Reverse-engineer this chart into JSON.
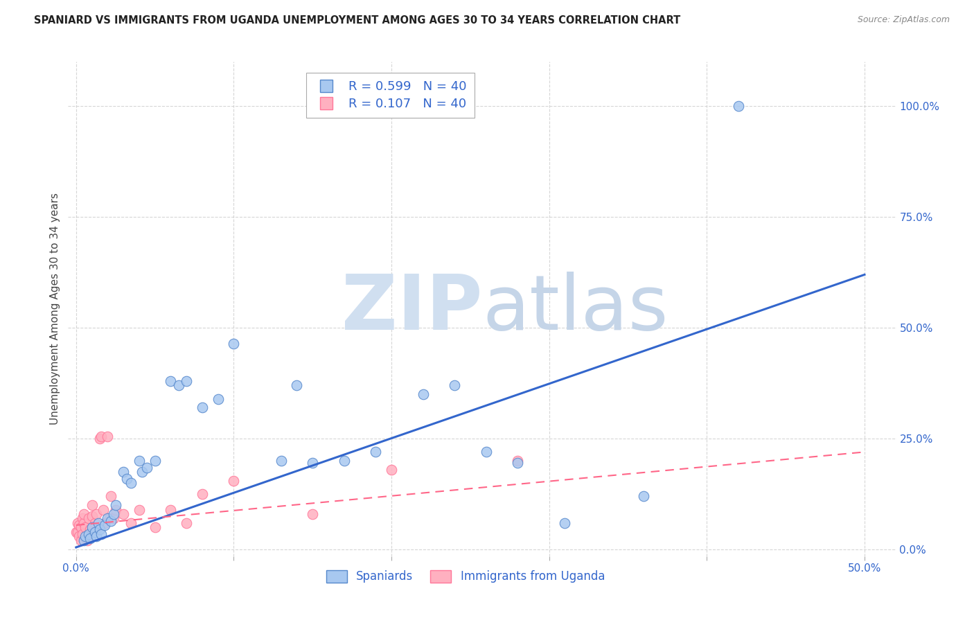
{
  "title": "SPANIARD VS IMMIGRANTS FROM UGANDA UNEMPLOYMENT AMONG AGES 30 TO 34 YEARS CORRELATION CHART",
  "source": "Source: ZipAtlas.com",
  "ylabel": "Unemployment Among Ages 30 to 34 years",
  "legend_blue_r": "R = 0.599",
  "legend_blue_n": "N = 40",
  "legend_pink_r": "R = 0.107",
  "legend_pink_n": "N = 40",
  "legend_label_blue": "Spaniards",
  "legend_label_pink": "Immigrants from Uganda",
  "blue_scatter_color": "#A8C8F0",
  "blue_edge_color": "#5588CC",
  "pink_scatter_color": "#FFB0C0",
  "pink_edge_color": "#FF7799",
  "blue_line_color": "#3366CC",
  "pink_line_color": "#FF6688",
  "watermark_zip_color": "#C8D8E8",
  "watermark_atlas_color": "#C8D8E8",
  "spaniards_x": [
    0.005,
    0.006,
    0.008,
    0.009,
    0.01,
    0.012,
    0.013,
    0.014,
    0.015,
    0.016,
    0.018,
    0.02,
    0.022,
    0.024,
    0.025,
    0.03,
    0.032,
    0.035,
    0.04,
    0.042,
    0.045,
    0.05,
    0.06,
    0.065,
    0.07,
    0.08,
    0.09,
    0.1,
    0.13,
    0.14,
    0.15,
    0.17,
    0.19,
    0.22,
    0.24,
    0.26,
    0.28,
    0.31,
    0.36,
    0.42
  ],
  "spaniards_y": [
    0.02,
    0.03,
    0.035,
    0.025,
    0.05,
    0.04,
    0.03,
    0.06,
    0.045,
    0.035,
    0.055,
    0.07,
    0.065,
    0.08,
    0.1,
    0.175,
    0.16,
    0.15,
    0.2,
    0.175,
    0.185,
    0.2,
    0.38,
    0.37,
    0.38,
    0.32,
    0.34,
    0.465,
    0.2,
    0.37,
    0.195,
    0.2,
    0.22,
    0.35,
    0.37,
    0.22,
    0.195,
    0.06,
    0.12,
    1.0
  ],
  "uganda_x": [
    0.0,
    0.001,
    0.001,
    0.002,
    0.002,
    0.003,
    0.003,
    0.004,
    0.004,
    0.005,
    0.005,
    0.006,
    0.007,
    0.008,
    0.009,
    0.01,
    0.01,
    0.012,
    0.013,
    0.014,
    0.015,
    0.016,
    0.017,
    0.018,
    0.02,
    0.021,
    0.022,
    0.024,
    0.025,
    0.03,
    0.035,
    0.04,
    0.05,
    0.06,
    0.07,
    0.08,
    0.1,
    0.15,
    0.2,
    0.28
  ],
  "uganda_y": [
    0.04,
    0.04,
    0.06,
    0.03,
    0.055,
    0.02,
    0.05,
    0.035,
    0.07,
    0.06,
    0.08,
    0.05,
    0.02,
    0.07,
    0.045,
    0.075,
    0.1,
    0.06,
    0.08,
    0.05,
    0.25,
    0.255,
    0.09,
    0.06,
    0.255,
    0.07,
    0.12,
    0.07,
    0.09,
    0.08,
    0.06,
    0.09,
    0.05,
    0.09,
    0.06,
    0.125,
    0.155,
    0.08,
    0.18,
    0.2
  ],
  "blue_line_x": [
    0.0,
    0.5
  ],
  "blue_line_y": [
    0.005,
    0.62
  ],
  "pink_line_x": [
    0.0,
    0.5
  ],
  "pink_line_y": [
    0.055,
    0.22
  ],
  "xlim": [
    -0.005,
    0.52
  ],
  "ylim": [
    -0.015,
    1.1
  ],
  "xticks": [
    0.0,
    0.1,
    0.2,
    0.3,
    0.4,
    0.5
  ],
  "yticks": [
    0.0,
    0.25,
    0.5,
    0.75,
    1.0
  ],
  "figsize": [
    14.06,
    8.92
  ],
  "dpi": 100,
  "background_color": "#FFFFFF"
}
